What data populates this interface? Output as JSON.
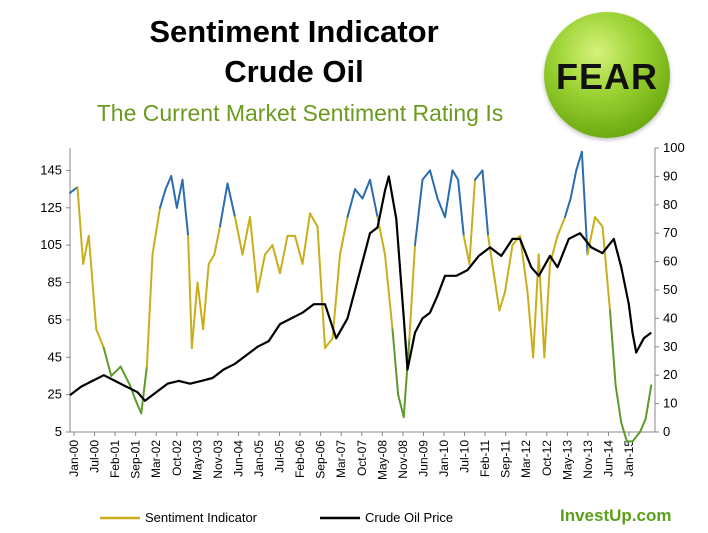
{
  "header": {
    "title_line1": "Sentiment Indicator",
    "title_line2": "Crude Oil",
    "subtitle": "The Current Market Sentiment Rating Is",
    "rating": "FEAR",
    "brand": "InvestUp.com"
  },
  "colors": {
    "sentiment": "#c9ae1c",
    "sentiment_high": "#2b6cb0",
    "sentiment_low": "#5f9a2c",
    "oil": "#000000",
    "subtitle": "#6a9a1e",
    "badge": "#7cbf1a",
    "brand": "#5aa01a"
  },
  "chart_data": {
    "type": "line",
    "title": "Sentiment Indicator Crude Oil",
    "x_labels": [
      "Jan-00",
      "Jul-00",
      "Feb-01",
      "Sep-01",
      "Mar-02",
      "Oct-02",
      "May-03",
      "Nov-03",
      "Jun-04",
      "Jan-05",
      "Jul-05",
      "Feb-06",
      "Sep-06",
      "Mar-07",
      "Oct-07",
      "May-08",
      "Nov-08",
      "Jun-09",
      "Jan-10",
      "Jul-10",
      "Feb-11",
      "Sep-11",
      "Mar-12",
      "Oct-12",
      "May-13",
      "Nov-13",
      "Jun-14",
      "Jan-15"
    ],
    "y_left": {
      "ticks": [
        5,
        25,
        45,
        65,
        85,
        105,
        125,
        145
      ],
      "range": [
        5,
        157
      ]
    },
    "y_right": {
      "ticks": [
        0,
        10,
        20,
        30,
        40,
        50,
        60,
        70,
        80,
        90,
        100
      ],
      "range": [
        0,
        100
      ]
    },
    "series": [
      {
        "name": "Sentiment Indicator",
        "axis": "left",
        "x": [
          2000.0,
          2000.2,
          2000.35,
          2000.5,
          2000.7,
          2000.9,
          2001.1,
          2001.35,
          2001.6,
          2001.75,
          2001.9,
          2002.05,
          2002.2,
          2002.4,
          2002.55,
          2002.7,
          2002.85,
          2003.0,
          2003.15,
          2003.25,
          2003.4,
          2003.55,
          2003.7,
          2003.85,
          2004.0,
          2004.2,
          2004.4,
          2004.6,
          2004.8,
          2005.0,
          2005.2,
          2005.4,
          2005.6,
          2005.8,
          2006.0,
          2006.2,
          2006.4,
          2006.6,
          2006.8,
          2007.0,
          2007.2,
          2007.4,
          2007.6,
          2007.8,
          2008.0,
          2008.2,
          2008.4,
          2008.6,
          2008.75,
          2008.9,
          2009.05,
          2009.2,
          2009.4,
          2009.6,
          2009.8,
          2010.0,
          2010.2,
          2010.35,
          2010.5,
          2010.65,
          2010.8,
          2011.0,
          2011.15,
          2011.3,
          2011.45,
          2011.6,
          2011.8,
          2012.0,
          2012.2,
          2012.35,
          2012.5,
          2012.65,
          2012.8,
          2013.0,
          2013.2,
          2013.35,
          2013.5,
          2013.65,
          2013.8,
          2014.0,
          2014.2,
          2014.4,
          2014.55,
          2014.7,
          2014.85,
          2015.0,
          2015.2,
          2015.35,
          2015.5
        ],
        "y": [
          133,
          136,
          95,
          110,
          60,
          50,
          35,
          40,
          30,
          22,
          15,
          40,
          100,
          125,
          135,
          142,
          125,
          140,
          110,
          50,
          85,
          60,
          95,
          100,
          115,
          138,
          120,
          100,
          120,
          80,
          100,
          105,
          90,
          110,
          110,
          95,
          122,
          115,
          50,
          55,
          100,
          120,
          135,
          130,
          140,
          120,
          100,
          60,
          25,
          13,
          55,
          105,
          140,
          145,
          130,
          120,
          145,
          140,
          110,
          95,
          140,
          145,
          110,
          90,
          70,
          80,
          105,
          110,
          80,
          45,
          100,
          45,
          95,
          110,
          120,
          130,
          145,
          155,
          100,
          120,
          115,
          70,
          30,
          10,
          0,
          0,
          5,
          12,
          30
        ]
      },
      {
        "name": "Crude Oil Price",
        "axis": "right",
        "x": [
          2000.0,
          2000.3,
          2000.6,
          2000.9,
          2001.2,
          2001.5,
          2001.8,
          2002.0,
          2002.3,
          2002.6,
          2002.9,
          2003.2,
          2003.5,
          2003.8,
          2004.1,
          2004.4,
          2004.7,
          2005.0,
          2005.3,
          2005.6,
          2005.9,
          2006.2,
          2006.5,
          2006.8,
          2007.1,
          2007.4,
          2007.7,
          2008.0,
          2008.2,
          2008.4,
          2008.5,
          2008.7,
          2008.9,
          2009.0,
          2009.2,
          2009.4,
          2009.6,
          2009.8,
          2010.0,
          2010.3,
          2010.6,
          2010.9,
          2011.2,
          2011.5,
          2011.8,
          2012.0,
          2012.3,
          2012.5,
          2012.8,
          2013.0,
          2013.3,
          2013.6,
          2013.9,
          2014.2,
          2014.5,
          2014.7,
          2014.9,
          2015.0,
          2015.1,
          2015.3,
          2015.5
        ],
        "y": [
          13,
          16,
          18,
          20,
          18,
          16,
          14,
          11,
          14,
          17,
          18,
          17,
          18,
          19,
          22,
          24,
          27,
          30,
          32,
          38,
          40,
          42,
          45,
          45,
          33,
          40,
          55,
          70,
          72,
          85,
          90,
          75,
          40,
          22,
          35,
          40,
          42,
          48,
          55,
          55,
          57,
          62,
          65,
          62,
          68,
          68,
          58,
          55,
          62,
          58,
          68,
          70,
          65,
          63,
          68,
          58,
          45,
          35,
          28,
          33,
          35
        ]
      }
    ],
    "legend": [
      "Sentiment Indicator",
      "Crude Oil Price"
    ],
    "legend_position": "bottom",
    "grid": false
  }
}
